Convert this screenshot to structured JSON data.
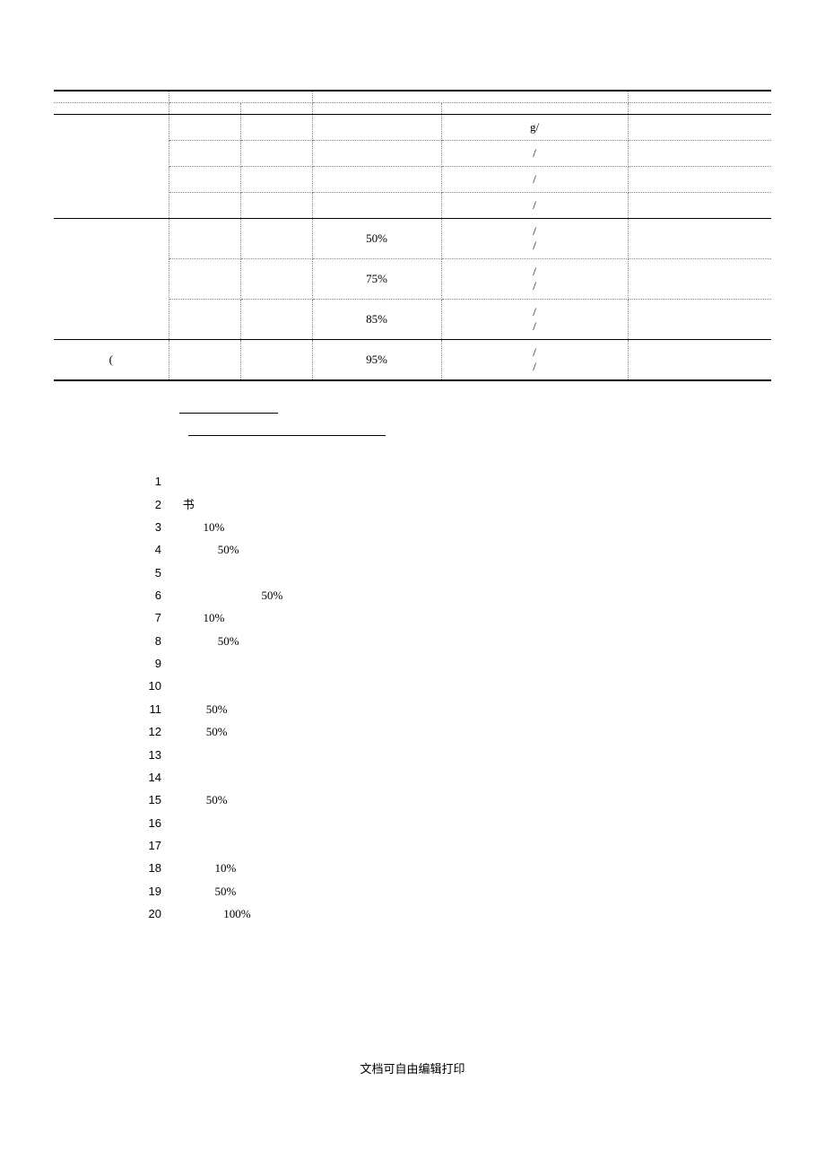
{
  "table": {
    "border_color": "#000000",
    "dotted_color": "#888888",
    "columns": [
      "",
      "",
      "",
      "",
      "",
      ""
    ],
    "col_widths": [
      "16%",
      "10%",
      "10%",
      "18%",
      "26%",
      "20%"
    ],
    "rows": [
      {
        "cells": [
          "",
          "",
          "",
          ""
        ],
        "spans": [
          1,
          2,
          2,
          1
        ],
        "top": true
      },
      {
        "cells": [
          "",
          "",
          "",
          "",
          "",
          ""
        ],
        "solid_bottom": true
      },
      {
        "cells": [
          "",
          "",
          "",
          "",
          "g/",
          ""
        ],
        "rowspan0": 4
      },
      {
        "cells": [
          "",
          "",
          "",
          "/",
          ""
        ]
      },
      {
        "cells": [
          "",
          "",
          "",
          "/",
          ""
        ]
      },
      {
        "cells": [
          "",
          "",
          "",
          "/",
          ""
        ],
        "solid_bottom": true
      },
      {
        "cells": [
          "",
          "",
          "",
          "50%",
          "/\n/",
          ""
        ],
        "rowspan0": 3
      },
      {
        "cells": [
          "",
          "",
          "75%",
          "/\n/",
          ""
        ]
      },
      {
        "cells": [
          "",
          "",
          "85%",
          "/\n/",
          ""
        ],
        "solid_bottom": true
      },
      {
        "cells": [
          "(",
          "",
          "",
          "95%",
          "/\n/",
          ""
        ],
        "bottom": true
      }
    ]
  },
  "list": {
    "items": [
      {
        "n": "1",
        "text": ""
      },
      {
        "n": "2",
        "text": "   书"
      },
      {
        "n": "3",
        "text": "          10%"
      },
      {
        "n": "4",
        "text": "               50%"
      },
      {
        "n": "5",
        "text": ""
      },
      {
        "n": "6",
        "text": "                              50%"
      },
      {
        "n": "7",
        "text": "          10%"
      },
      {
        "n": "8",
        "text": "               50%"
      },
      {
        "n": "9",
        "text": ""
      },
      {
        "n": "10",
        "text": ""
      },
      {
        "n": "11",
        "text": "           50%"
      },
      {
        "n": "12",
        "text": "           50%"
      },
      {
        "n": "13",
        "text": ""
      },
      {
        "n": "14",
        "text": ""
      },
      {
        "n": "15",
        "text": "           50%"
      },
      {
        "n": "16",
        "text": ""
      },
      {
        "n": "17",
        "text": ""
      },
      {
        "n": "18",
        "text": "              10%"
      },
      {
        "n": "19",
        "text": "              50%"
      },
      {
        "n": "20",
        "text": "                 100%"
      }
    ]
  },
  "footer": "文档可自由编辑打印"
}
